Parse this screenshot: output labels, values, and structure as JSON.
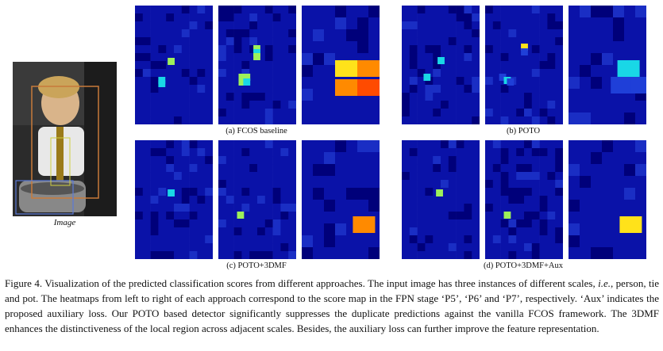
{
  "image": {
    "label": "Image"
  },
  "panels": [
    {
      "caption": "(a) FCOS baseline"
    },
    {
      "caption": "(b) POTO"
    },
    {
      "caption": "(c) POTO+3DMF"
    },
    {
      "caption": "(d) POTO+3DMF+Aux"
    }
  ],
  "caption": {
    "figure_label": "Figure 4.",
    "text_1": "Visualization of the predicted classification scores from different approaches. The input image has three instances of different scales, ",
    "ie": "i.e.",
    "text_2": ", person, tie and pot. The heatmaps from left to right of each approach correspond to the score map in the FPN stage ‘P5’, ‘P6’ and ‘P7’, respectively. ‘Aux’ indicates the proposed auxiliary loss. Our POTO based detector significantly suppresses the duplicate predictions against the vanilla FCOS framework. The 3DMF enhances the distinctiveness of the local region across adjacent scales. Besides, the auxiliary loss can further improve the feature representation."
  },
  "colors": {
    "bg_dark": "#00007a",
    "bg": "#0a12a8",
    "mid": "#1f3fd8",
    "cyan": "#19d7e6",
    "green": "#9ef05a",
    "yellow": "#ffe21a",
    "orange": "#ff8a00",
    "red": "#ff4b00"
  }
}
